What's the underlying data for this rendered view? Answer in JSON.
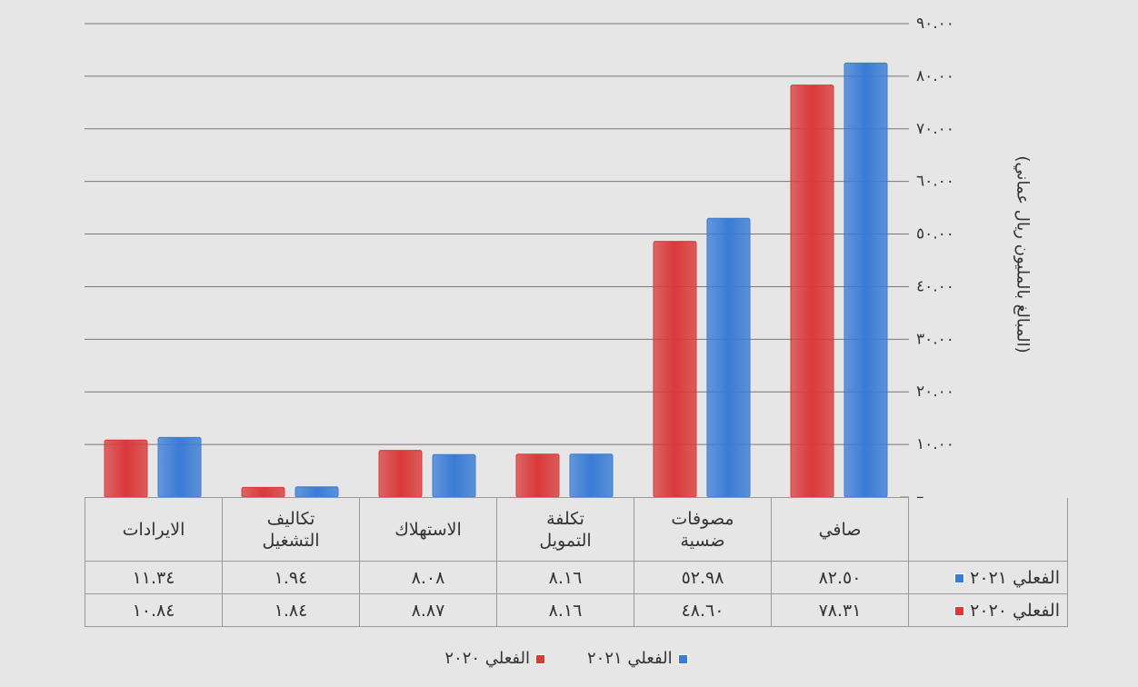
{
  "chart_data": {
    "type": "bar",
    "y_label": "(المبالغ بالمليون ريال عماني)",
    "categories": [
      "صافي",
      "مصوفات\nضسية",
      "تكلفة\nالتمويل",
      "الاستهلاك",
      "تكاليف\nالتشغيل",
      "الايرادات"
    ],
    "series": [
      {
        "name": "الفعلي ٢٠٢١",
        "color": "#3a7bd5",
        "values": [
          82.5,
          52.98,
          8.16,
          8.08,
          1.94,
          11.34
        ],
        "value_labels": [
          "٨٢.٥٠",
          "٥٢.٩٨",
          "٨.١٦",
          "٨.٠٨",
          "١.٩٤",
          "١١.٣٤"
        ]
      },
      {
        "name": "الفعلي ٢٠٢٠",
        "color": "#d9393a",
        "values": [
          78.31,
          48.6,
          8.16,
          8.87,
          1.84,
          10.84
        ],
        "value_labels": [
          "٧٨.٣١",
          "٤٨.٦٠",
          "٨.١٦",
          "٨.٨٧",
          "١.٨٤",
          "١٠.٨٤"
        ]
      }
    ],
    "ylim": [
      0,
      90
    ],
    "yticks": [
      {
        "value": 0,
        "label": "–"
      },
      {
        "value": 10,
        "label": "١٠.٠٠"
      },
      {
        "value": 20,
        "label": "٢٠.٠٠"
      },
      {
        "value": 30,
        "label": "٣٠.٠٠"
      },
      {
        "value": 40,
        "label": "٤٠.٠٠"
      },
      {
        "value": 50,
        "label": "٥٠.٠٠"
      },
      {
        "value": 60,
        "label": "٦٠.٠٠"
      },
      {
        "value": 70,
        "label": "٧٠.٠٠"
      },
      {
        "value": 80,
        "label": "٨٠.٠٠"
      },
      {
        "value": 90,
        "label": "٩٠.٠٠"
      }
    ],
    "grid": true
  }
}
